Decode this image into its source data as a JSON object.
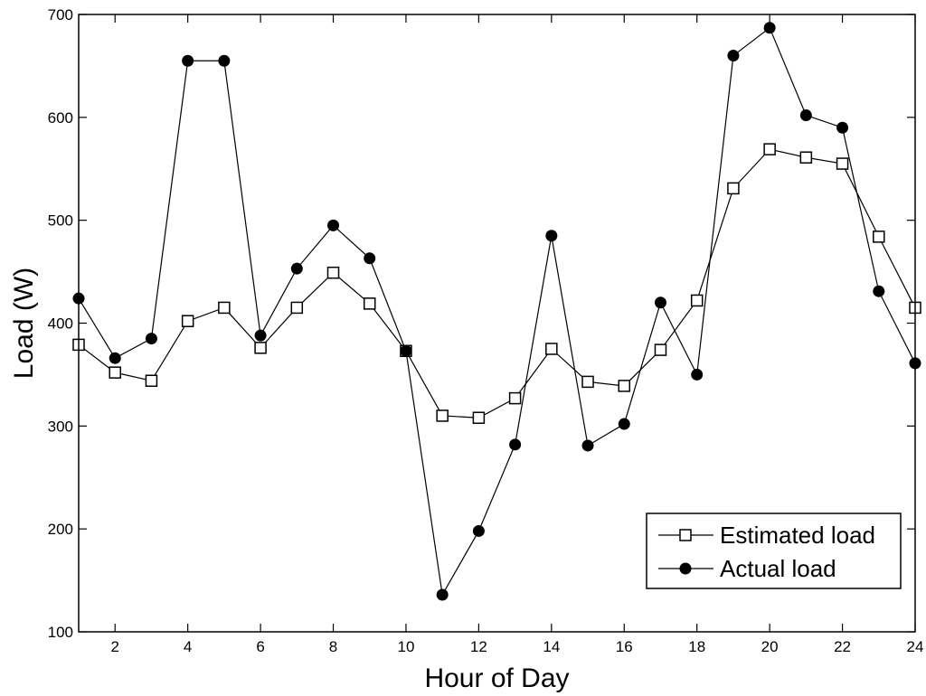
{
  "chart_data": {
    "type": "line",
    "title": "",
    "xlabel": "Hour of Day",
    "ylabel": "Load (W)",
    "xlim": [
      1,
      24
    ],
    "ylim": [
      100,
      700
    ],
    "xticks": [
      2,
      4,
      6,
      8,
      10,
      12,
      14,
      16,
      18,
      20,
      22,
      24
    ],
    "yticks": [
      100,
      200,
      300,
      400,
      500,
      600,
      700
    ],
    "grid": false,
    "legend_position": "bottom-right",
    "x": [
      1,
      2,
      3,
      4,
      5,
      6,
      7,
      8,
      9,
      10,
      11,
      12,
      13,
      14,
      15,
      16,
      17,
      18,
      19,
      20,
      21,
      22,
      23,
      24
    ],
    "series": [
      {
        "name": "Estimated load",
        "marker": "open-square",
        "color": "#000000",
        "values": [
          379,
          352,
          344,
          402,
          415,
          376,
          415,
          449,
          419,
          373,
          310,
          308,
          327,
          375,
          343,
          339,
          374,
          422,
          531,
          569,
          561,
          555,
          484,
          415
        ]
      },
      {
        "name": "Actual load",
        "marker": "filled-circle",
        "color": "#000000",
        "values": [
          424,
          366,
          385,
          655,
          655,
          388,
          453,
          495,
          463,
          373,
          136,
          198,
          282,
          485,
          281,
          302,
          420,
          350,
          660,
          687,
          602,
          590,
          431,
          361
        ]
      }
    ]
  }
}
